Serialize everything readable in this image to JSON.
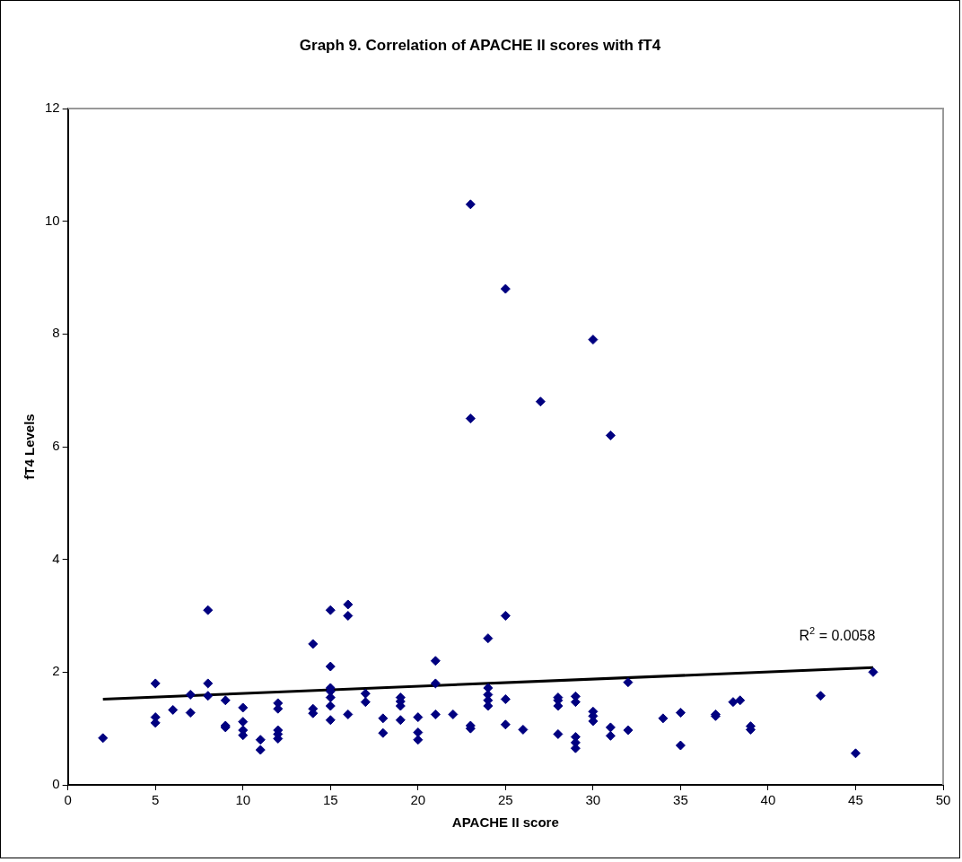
{
  "chart_data": {
    "type": "scatter",
    "title": "Graph 9. Correlation of APACHE II scores with fT4",
    "xlabel": "APACHE II score",
    "ylabel": "fT4 Levels",
    "xlim": [
      0,
      50
    ],
    "xticks": [
      0,
      5,
      10,
      15,
      20,
      25,
      30,
      35,
      40,
      45,
      50
    ],
    "ylim": [
      0,
      12
    ],
    "yticks": [
      0,
      2,
      4,
      6,
      8,
      10,
      12
    ],
    "grid": false,
    "legend": false,
    "marker": "diamond",
    "annotations": [
      "R$^{2}$ = 0.0058"
    ],
    "series": [
      {
        "color": "#000080",
        "x": [
          2,
          5,
          5,
          5,
          6,
          7,
          7,
          8,
          8,
          8,
          9,
          9,
          9,
          10,
          10,
          10,
          10,
          11,
          11,
          12,
          12,
          12,
          12,
          12,
          14,
          14,
          14,
          15,
          15,
          15,
          15,
          15,
          15,
          15,
          16,
          16,
          16,
          17,
          17,
          18,
          18,
          19,
          19,
          19,
          19,
          20,
          20,
          20,
          21,
          21,
          21,
          22,
          23,
          23,
          23,
          23,
          24,
          24,
          24,
          24,
          24,
          25,
          25,
          25,
          25,
          26,
          27,
          28,
          28,
          28,
          28,
          29,
          29,
          29,
          29,
          29,
          30,
          30,
          30,
          30,
          31,
          31,
          31,
          32,
          32,
          34,
          35,
          35,
          37,
          37,
          38,
          38.4,
          39,
          39,
          43,
          45,
          46
        ],
        "values": [
          0.83,
          1.8,
          1.2,
          1.1,
          1.33,
          1.6,
          1.28,
          3.1,
          1.8,
          1.58,
          1.5,
          1.05,
          1.02,
          1.37,
          1.12,
          0.97,
          0.88,
          0.8,
          0.62,
          1.45,
          1.35,
          0.97,
          0.9,
          0.82,
          2.5,
          1.35,
          1.27,
          3.1,
          2.1,
          1.72,
          1.66,
          1.55,
          1.4,
          1.15,
          3.2,
          3.0,
          1.25,
          1.62,
          1.47,
          1.18,
          0.92,
          1.55,
          1.48,
          1.4,
          1.15,
          1.2,
          0.93,
          0.8,
          2.2,
          1.8,
          1.25,
          1.25,
          10.3,
          6.5,
          1.05,
          1.0,
          2.6,
          1.72,
          1.6,
          1.5,
          1.4,
          8.8,
          3.0,
          1.52,
          1.07,
          0.98,
          6.8,
          1.55,
          1.5,
          1.4,
          0.9,
          1.57,
          1.47,
          0.85,
          0.75,
          0.65,
          7.9,
          1.3,
          1.22,
          1.13,
          6.2,
          1.02,
          0.87,
          1.82,
          0.97,
          1.18,
          1.28,
          0.7,
          1.25,
          1.22,
          1.47,
          1.5,
          1.04,
          0.98,
          1.58,
          0.56,
          2.0
        ]
      },
      {
        "type": "line",
        "color": "#000000",
        "marker": "none",
        "line_style": "solid",
        "x": [
          2,
          46
        ],
        "values": [
          1.52,
          2.08
        ]
      }
    ]
  }
}
